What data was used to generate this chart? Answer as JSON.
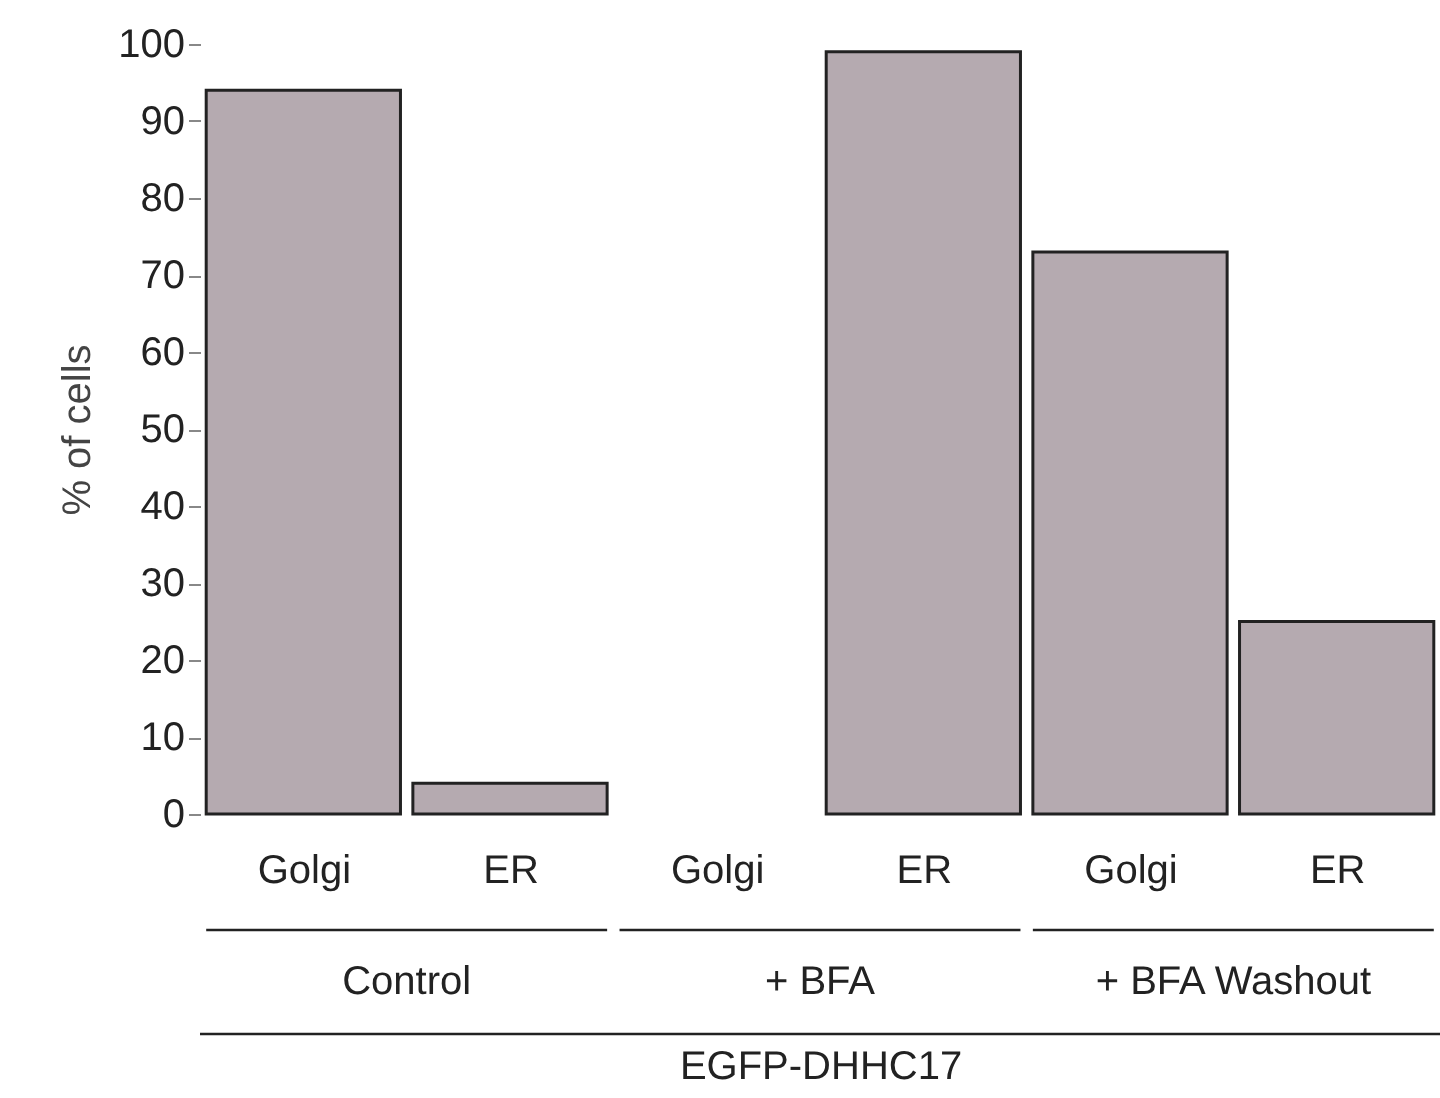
{
  "chart_data": {
    "type": "bar",
    "categories": [
      "Golgi",
      "ER",
      "Golgi",
      "ER",
      "Golgi",
      "ER"
    ],
    "values": [
      94,
      4,
      0,
      99,
      73,
      25
    ],
    "color": "#b5aab0",
    "ylabel": "% of cells",
    "xlabel": "EGFP-DHHC17",
    "annotations": [
      "Control",
      "+ BFA",
      "+ BFA Washout"
    ],
    "ylim": [
      0,
      100
    ],
    "yticks": [
      0,
      10,
      20,
      30,
      40,
      50,
      60,
      70,
      80,
      90,
      100
    ],
    "grid": false
  }
}
